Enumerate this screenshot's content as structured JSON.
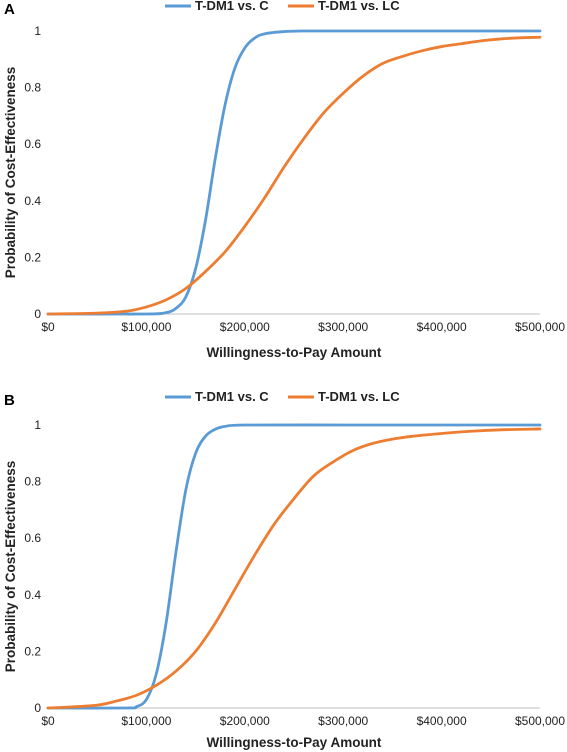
{
  "chart_data": [
    {
      "panel_label": "A",
      "type": "line",
      "xlabel": "Willingness-to-Pay Amount",
      "ylabel": "Probability of Cost-Effectiveness",
      "xlim": [
        0,
        500000
      ],
      "ylim": [
        0,
        1
      ],
      "x_ticks": [
        0,
        100000,
        200000,
        300000,
        400000,
        500000
      ],
      "x_tick_labels": [
        "$0",
        "$100,000",
        "$200,000",
        "$300,000",
        "$400,000",
        "$500,000"
      ],
      "y_ticks": [
        0,
        0.2,
        0.4,
        0.6,
        0.8,
        1
      ],
      "y_tick_labels": [
        "0",
        "0.2",
        "0.4",
        "0.6",
        "0.8",
        "1"
      ],
      "legend_position": "top",
      "series": [
        {
          "name": "T-DM1 vs. C",
          "color": "#5b9bd5",
          "points": [
            [
              0,
              0
            ],
            [
              100000,
              0
            ],
            [
              120000,
              0.005
            ],
            [
              130000,
              0.02
            ],
            [
              140000,
              0.06
            ],
            [
              150000,
              0.16
            ],
            [
              160000,
              0.33
            ],
            [
              170000,
              0.55
            ],
            [
              180000,
              0.74
            ],
            [
              190000,
              0.87
            ],
            [
              200000,
              0.94
            ],
            [
              210000,
              0.975
            ],
            [
              220000,
              0.99
            ],
            [
              240000,
              0.998
            ],
            [
              260000,
              1
            ],
            [
              300000,
              1
            ],
            [
              400000,
              1
            ],
            [
              500000,
              1
            ]
          ]
        },
        {
          "name": "T-DM1 vs. LC",
          "color": "#ed7d31",
          "points": [
            [
              0,
              0
            ],
            [
              50000,
              0.003
            ],
            [
              80000,
              0.01
            ],
            [
              100000,
              0.025
            ],
            [
              120000,
              0.05
            ],
            [
              140000,
              0.09
            ],
            [
              160000,
              0.15
            ],
            [
              180000,
              0.22
            ],
            [
              200000,
              0.31
            ],
            [
              220000,
              0.41
            ],
            [
              240000,
              0.52
            ],
            [
              260000,
              0.62
            ],
            [
              280000,
              0.71
            ],
            [
              300000,
              0.78
            ],
            [
              320000,
              0.84
            ],
            [
              340000,
              0.885
            ],
            [
              360000,
              0.91
            ],
            [
              380000,
              0.93
            ],
            [
              400000,
              0.945
            ],
            [
              420000,
              0.955
            ],
            [
              440000,
              0.965
            ],
            [
              460000,
              0.972
            ],
            [
              480000,
              0.976
            ],
            [
              500000,
              0.978
            ]
          ]
        }
      ]
    },
    {
      "panel_label": "B",
      "type": "line",
      "xlabel": "Willingness-to-Pay Amount",
      "ylabel": "Probability of Cost-Effectiveness",
      "xlim": [
        0,
        500000
      ],
      "ylim": [
        0,
        1
      ],
      "x_ticks": [
        0,
        100000,
        200000,
        300000,
        400000,
        500000
      ],
      "x_tick_labels": [
        "$0",
        "$100,000",
        "$200,000",
        "$300,000",
        "$400,000",
        "$500,000"
      ],
      "y_ticks": [
        0,
        0.2,
        0.4,
        0.6,
        0.8,
        1
      ],
      "y_tick_labels": [
        "0",
        "0.2",
        "0.4",
        "0.6",
        "0.8",
        "1"
      ],
      "legend_position": "top",
      "series": [
        {
          "name": "T-DM1 vs. C",
          "color": "#5b9bd5",
          "points": [
            [
              0,
              0
            ],
            [
              80000,
              0
            ],
            [
              90000,
              0.005
            ],
            [
              100000,
              0.03
            ],
            [
              110000,
              0.12
            ],
            [
              120000,
              0.3
            ],
            [
              130000,
              0.55
            ],
            [
              140000,
              0.77
            ],
            [
              150000,
              0.9
            ],
            [
              160000,
              0.96
            ],
            [
              170000,
              0.985
            ],
            [
              180000,
              0.995
            ],
            [
              200000,
              1
            ],
            [
              300000,
              1
            ],
            [
              400000,
              1
            ],
            [
              500000,
              1
            ]
          ]
        },
        {
          "name": "T-DM1 vs. LC",
          "color": "#ed7d31",
          "points": [
            [
              0,
              0
            ],
            [
              20000,
              0.003
            ],
            [
              50000,
              0.01
            ],
            [
              70000,
              0.025
            ],
            [
              90000,
              0.045
            ],
            [
              110000,
              0.08
            ],
            [
              130000,
              0.13
            ],
            [
              150000,
              0.2
            ],
            [
              170000,
              0.3
            ],
            [
              190000,
              0.42
            ],
            [
              210000,
              0.54
            ],
            [
              230000,
              0.65
            ],
            [
              250000,
              0.74
            ],
            [
              270000,
              0.82
            ],
            [
              290000,
              0.87
            ],
            [
              310000,
              0.91
            ],
            [
              330000,
              0.935
            ],
            [
              350000,
              0.95
            ],
            [
              370000,
              0.96
            ],
            [
              400000,
              0.97
            ],
            [
              430000,
              0.978
            ],
            [
              460000,
              0.983
            ],
            [
              500000,
              0.986
            ]
          ]
        }
      ]
    }
  ]
}
